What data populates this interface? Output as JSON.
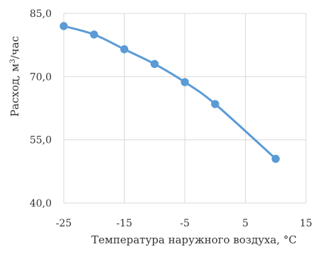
{
  "chart_data": {
    "type": "line",
    "title": "",
    "xlabel": "Температура наружного воздуха, °C",
    "ylabel": "Расход, м3/час",
    "ylabel_parts": {
      "prefix": "Расход, м",
      "superscript": "3",
      "suffix": "/час"
    },
    "xlim": [
      -25,
      15
    ],
    "ylim": [
      40,
      85
    ],
    "xticks": [
      -25,
      -15,
      -5,
      5,
      15
    ],
    "yticks": [
      40,
      55,
      70,
      85
    ],
    "xtick_labels": [
      "-25",
      "-15",
      "-5",
      "5",
      "15"
    ],
    "ytick_labels": [
      "40,0",
      "55,0",
      "70,0",
      "85,0"
    ],
    "grid": true,
    "legend": "none",
    "series": [
      {
        "color": "#5B9BD5",
        "points": [
          {
            "x": -25,
            "y": 82.0
          },
          {
            "x": -20,
            "y": 80.0
          },
          {
            "x": -15,
            "y": 76.5
          },
          {
            "x": -10,
            "y": 73.0
          },
          {
            "x": -5,
            "y": 68.7
          },
          {
            "x": 0,
            "y": 63.5
          },
          {
            "x": 10,
            "y": 50.5
          }
        ]
      }
    ]
  },
  "colors": {
    "series": "#5B9BD5",
    "grid": "#d9d9d9",
    "text": "#333333"
  }
}
